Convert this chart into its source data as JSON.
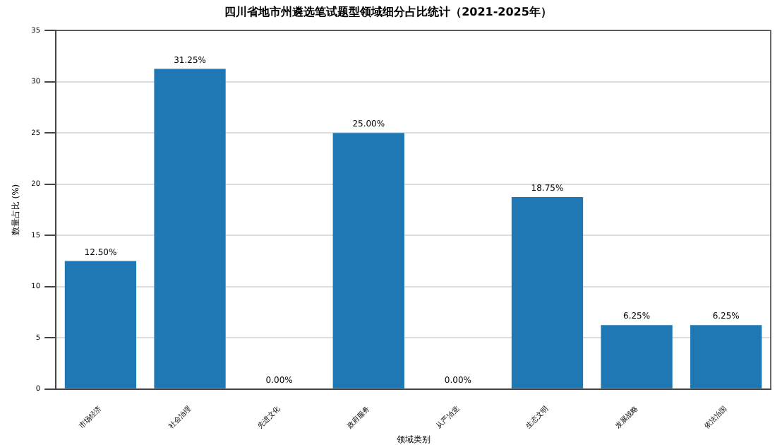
{
  "chart_data": {
    "type": "bar",
    "title": "四川省地市州遴选笔试题型领域细分占比统计（2021-2025年）",
    "xlabel": "领域类别",
    "ylabel": "数量占比 (%)",
    "categories": [
      "市场经济",
      "社会治理",
      "先进文化",
      "政府服务",
      "从严治党",
      "生态文明",
      "发展战略",
      "依法治国"
    ],
    "values": [
      12.5,
      31.25,
      0,
      25,
      0,
      18.75,
      6.25,
      6.25
    ],
    "value_labels": [
      "12.50%",
      "31.25%",
      "0.00%",
      "25.00%",
      "0.00%",
      "18.75%",
      "6.25%",
      "6.25%"
    ],
    "color": "#1f77b4",
    "ylim": [
      0,
      35
    ],
    "yticks": [
      0,
      5,
      10,
      15,
      20,
      25,
      30,
      35
    ],
    "grid": "y"
  }
}
